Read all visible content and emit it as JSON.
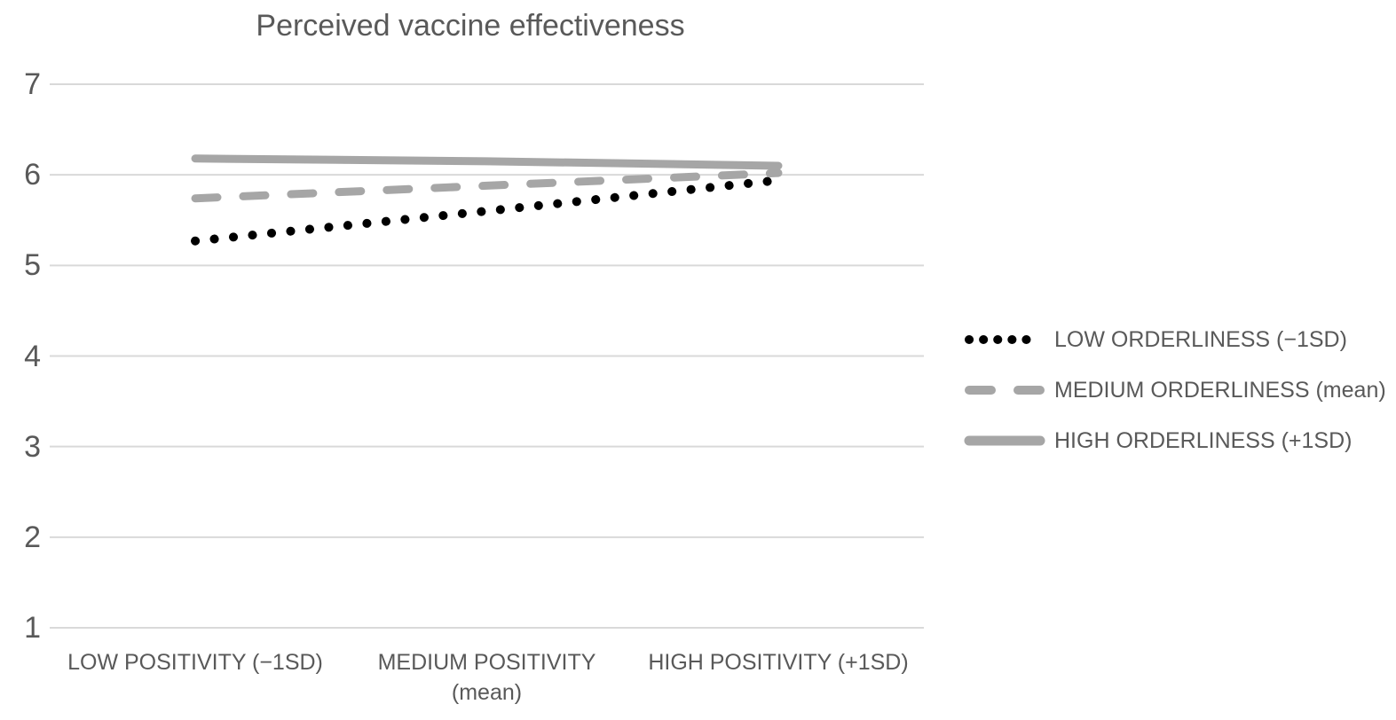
{
  "colors": {
    "text": "#595959",
    "gridline": "#d9d9d9",
    "background": "#ffffff",
    "series_black": "#000000",
    "series_gray": "#a6a6a6"
  },
  "chart_data": {
    "type": "line",
    "title": "Perceived vaccine effectiveness",
    "categories": [
      "LOW POSITIVITY (−1SD)",
      "MEDIUM POSITIVITY (mean)",
      "HIGH POSITIVITY (+1SD)"
    ],
    "series": [
      {
        "name": "LOW ORDERLINESS (−1SD)",
        "values": [
          5.27,
          5.6,
          5.94
        ],
        "style": "dotted",
        "color": "#000000"
      },
      {
        "name": "MEDIUM ORDERLINESS (mean)",
        "values": [
          5.74,
          5.88,
          6.02
        ],
        "style": "dashed",
        "color": "#a6a6a6"
      },
      {
        "name": "HIGH ORDERLINESS (+1SD)",
        "values": [
          6.18,
          6.15,
          6.1
        ],
        "style": "solid",
        "color": "#a6a6a6"
      }
    ],
    "xlabel": "",
    "ylabel": "",
    "ylim": [
      1,
      7
    ],
    "y_ticks": [
      7,
      6,
      5,
      4,
      3,
      2,
      1
    ],
    "grid": true,
    "legend_position": "right-middle"
  },
  "x_axis": {
    "labels": [
      {
        "line1": "LOW POSITIVITY (−1SD)",
        "line2": ""
      },
      {
        "line1": "MEDIUM POSITIVITY",
        "line2": "(mean)"
      },
      {
        "line1": "HIGH POSITIVITY (+1SD)",
        "line2": ""
      }
    ]
  },
  "legend": {
    "items": [
      {
        "label": "LOW ORDERLINESS (−1SD)",
        "marker": "dotted-black-line-icon"
      },
      {
        "label": "MEDIUM ORDERLINESS (mean)",
        "marker": "dashed-gray-line-icon"
      },
      {
        "label": "HIGH ORDERLINESS (+1SD)",
        "marker": "solid-gray-line-icon"
      }
    ]
  }
}
